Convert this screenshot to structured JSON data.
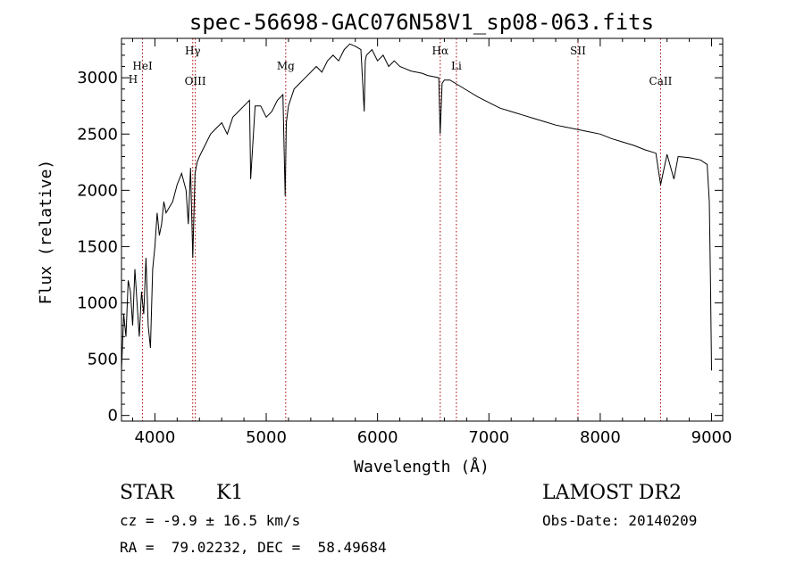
{
  "chart_data": {
    "type": "line",
    "title": "spec-56698-GAC076N58V1_sp08-063.fits",
    "xlabel": "Wavelength (Å)",
    "ylabel": "Flux (relative)",
    "xlim": [
      3700,
      9100
    ],
    "ylim": [
      -50,
      3350
    ],
    "xticks": [
      4000,
      5000,
      6000,
      7000,
      8000,
      9000
    ],
    "yticks": [
      0,
      500,
      1000,
      1500,
      2000,
      2500,
      3000
    ],
    "xtick_labels": [
      "4000",
      "5000",
      "6000",
      "7000",
      "8000",
      "9000"
    ],
    "ytick_labels": [
      "0",
      "500",
      "1000",
      "1500",
      "2000",
      "2500",
      "3000"
    ],
    "grid": false,
    "series": [
      {
        "color": "#000000",
        "x": [
          3700,
          3720,
          3740,
          3760,
          3780,
          3800,
          3820,
          3840,
          3860,
          3880,
          3900,
          3920,
          3940,
          3960,
          3980,
          4000,
          4020,
          4040,
          4060,
          4080,
          4100,
          4130,
          4160,
          4200,
          4240,
          4280,
          4300,
          4320,
          4340,
          4360,
          4380,
          4400,
          4450,
          4500,
          4550,
          4600,
          4650,
          4700,
          4750,
          4800,
          4850,
          4860,
          4900,
          4950,
          5000,
          5050,
          5100,
          5150,
          5170,
          5180,
          5200,
          5250,
          5300,
          5350,
          5400,
          5450,
          5500,
          5550,
          5600,
          5650,
          5700,
          5750,
          5800,
          5850,
          5880,
          5890,
          5900,
          5950,
          6000,
          6050,
          6100,
          6150,
          6200,
          6250,
          6300,
          6350,
          6400,
          6450,
          6500,
          6550,
          6562,
          6580,
          6600,
          6650,
          6700,
          6800,
          6900,
          7000,
          7100,
          7200,
          7300,
          7400,
          7500,
          7600,
          7700,
          7800,
          7900,
          8000,
          8100,
          8200,
          8300,
          8400,
          8500,
          8542,
          8600,
          8662,
          8700,
          8800,
          8900,
          8960,
          8980,
          8990,
          9000
        ],
        "y": [
          400,
          900,
          700,
          1200,
          1100,
          800,
          1300,
          1000,
          700,
          1100,
          900,
          1400,
          800,
          600,
          1300,
          1500,
          1800,
          1600,
          1700,
          1900,
          1800,
          1850,
          1900,
          2050,
          2150,
          2000,
          1700,
          2200,
          1400,
          2150,
          2250,
          2300,
          2400,
          2500,
          2550,
          2600,
          2500,
          2650,
          2700,
          2750,
          2800,
          2100,
          2750,
          2750,
          2650,
          2700,
          2800,
          2850,
          1950,
          2600,
          2750,
          2900,
          2950,
          3000,
          3050,
          3100,
          3050,
          3150,
          3200,
          3150,
          3250,
          3300,
          3280,
          3250,
          2700,
          3150,
          3200,
          3250,
          3150,
          3200,
          3100,
          3150,
          3100,
          3080,
          3060,
          3050,
          3040,
          3020,
          3010,
          3000,
          2500,
          2950,
          2980,
          2980,
          2950,
          2890,
          2830,
          2780,
          2730,
          2700,
          2670,
          2640,
          2610,
          2580,
          2560,
          2540,
          2520,
          2500,
          2460,
          2430,
          2400,
          2360,
          2330,
          2050,
          2320,
          2100,
          2300,
          2290,
          2270,
          2230,
          1900,
          1200,
          400
        ]
      }
    ],
    "lines": [
      {
        "label": "HeI",
        "x": 3889,
        "label_row": 2
      },
      {
        "label": "Hγ",
        "x": 4340,
        "label_row": 1
      },
      {
        "label": "OIII",
        "x": 4363,
        "label_row": 3
      },
      {
        "label": "Mg",
        "x": 5175,
        "label_row": 2
      },
      {
        "label": "Hα",
        "x": 6563,
        "label_row": 1
      },
      {
        "label": "Li",
        "x": 6708,
        "label_row": 2
      },
      {
        "label": "SII",
        "x": 7800,
        "label_row": 1
      },
      {
        "label": "CaII",
        "x": 8542,
        "label_row": 3
      }
    ],
    "line_color": "#aa0000",
    "overlapping_label": "H"
  },
  "info": {
    "object_class": "STAR",
    "subclass": "K1",
    "survey": "LAMOST DR2",
    "redshift": "cz = -9.9 ± 16.5 km/s",
    "obs_date": "Obs-Date: 20140209",
    "coords": "RA =  79.02232, DEC =  58.49684"
  }
}
